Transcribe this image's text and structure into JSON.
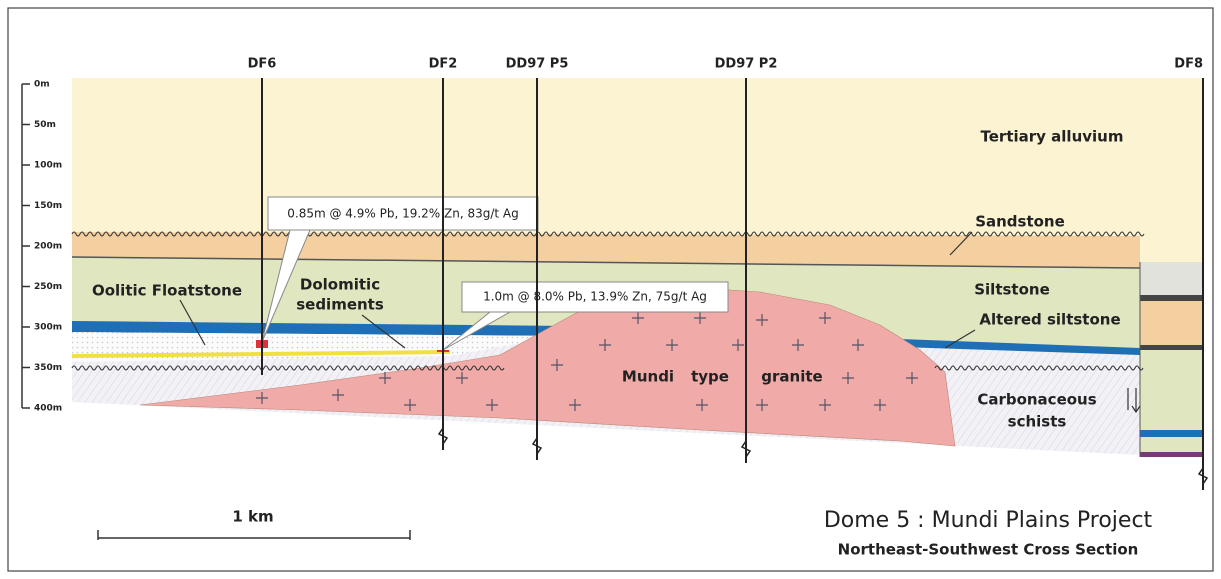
{
  "depth_axis": {
    "ticks": [
      "0m",
      "50m",
      "100m",
      "150m",
      "200m",
      "250m",
      "300m",
      "350m",
      "400m"
    ]
  },
  "drill_holes": [
    "DF6",
    "DF2",
    "DD97 P5",
    "DD97 P2",
    "DF8"
  ],
  "units": {
    "tertiary_alluvium": "Tertiary alluvium",
    "sandstone": "Sandstone",
    "siltstone": "Siltstone",
    "altered_siltstone": "Altered siltstone",
    "carbonaceous_schists": [
      "Carbonaceous",
      "schists"
    ],
    "oolitic_floatstone": "Oolitic Floatstone",
    "dolomitic_sediments": [
      "Dolomitic",
      "sediments"
    ],
    "granite": [
      "Mundi",
      "type",
      "granite"
    ]
  },
  "intercepts": [
    "0.85m @ 4.9% Pb, 19.2% Zn, 83g/t Ag",
    "1.0m @ 8.0% Pb, 13.9% Zn, 75g/t Ag"
  ],
  "scale_bar": {
    "label": "1 km"
  },
  "title": "Dome 5 : Mundi Plains Project",
  "subtitle": "Northeast-Southwest Cross Section"
}
